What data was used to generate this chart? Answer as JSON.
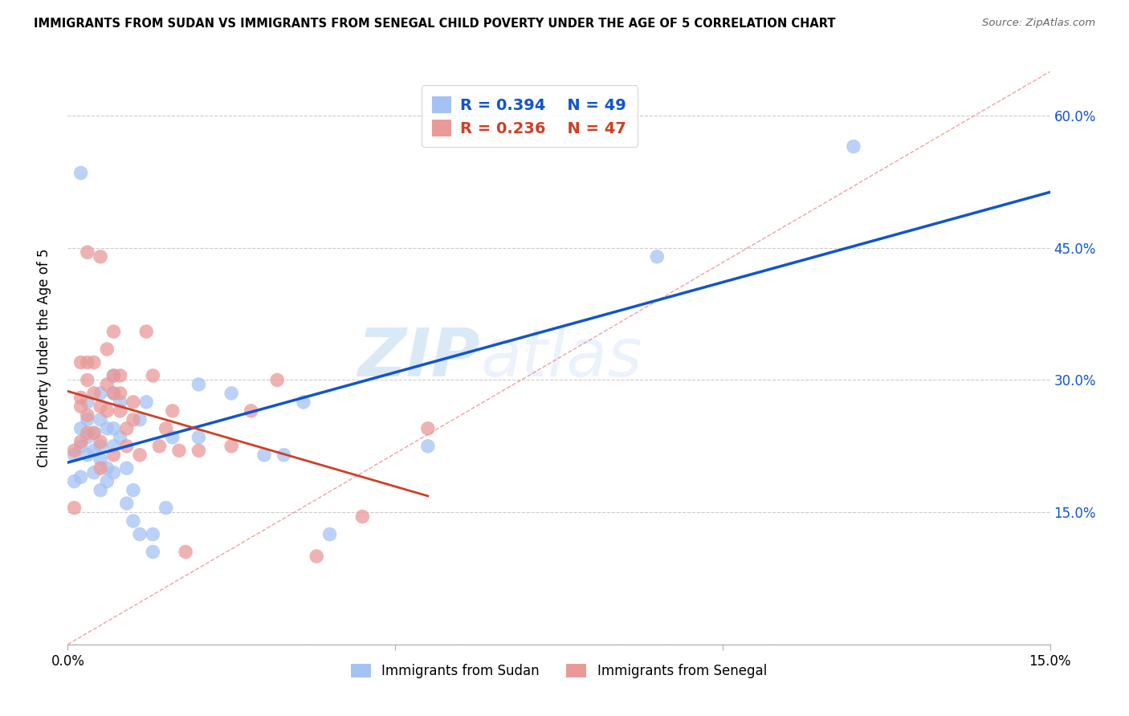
{
  "title": "IMMIGRANTS FROM SUDAN VS IMMIGRANTS FROM SENEGAL CHILD POVERTY UNDER THE AGE OF 5 CORRELATION CHART",
  "source": "Source: ZipAtlas.com",
  "ylabel": "Child Poverty Under the Age of 5",
  "xlim": [
    0,
    0.15
  ],
  "ylim": [
    0,
    0.65
  ],
  "sudan_color": "#a4c2f4",
  "senegal_color": "#ea9999",
  "sudan_line_color": "#1155cc",
  "senegal_line_color": "#cc4125",
  "diagonal_color": "#e06666",
  "watermark_zip": "ZIP",
  "watermark_atlas": "atlas",
  "legend_r_sudan": "R = 0.394",
  "legend_n_sudan": "N = 49",
  "legend_r_senegal": "R = 0.236",
  "legend_n_senegal": "N = 47",
  "sudan_x": [
    0.001,
    0.001,
    0.002,
    0.002,
    0.002,
    0.002,
    0.003,
    0.003,
    0.003,
    0.003,
    0.004,
    0.004,
    0.004,
    0.005,
    0.005,
    0.005,
    0.005,
    0.005,
    0.006,
    0.006,
    0.006,
    0.007,
    0.007,
    0.007,
    0.007,
    0.007,
    0.008,
    0.008,
    0.009,
    0.009,
    0.01,
    0.01,
    0.011,
    0.011,
    0.012,
    0.013,
    0.013,
    0.015,
    0.016,
    0.02,
    0.02,
    0.025,
    0.03,
    0.033,
    0.036,
    0.04,
    0.055,
    0.09,
    0.12
  ],
  "sudan_y": [
    0.215,
    0.185,
    0.245,
    0.225,
    0.19,
    0.535,
    0.215,
    0.235,
    0.255,
    0.275,
    0.22,
    0.24,
    0.195,
    0.21,
    0.285,
    0.225,
    0.255,
    0.175,
    0.245,
    0.2,
    0.185,
    0.285,
    0.305,
    0.225,
    0.245,
    0.195,
    0.275,
    0.235,
    0.2,
    0.16,
    0.175,
    0.14,
    0.255,
    0.125,
    0.275,
    0.125,
    0.105,
    0.155,
    0.235,
    0.295,
    0.235,
    0.285,
    0.215,
    0.215,
    0.275,
    0.125,
    0.225,
    0.44,
    0.565
  ],
  "senegal_x": [
    0.001,
    0.001,
    0.002,
    0.002,
    0.002,
    0.002,
    0.003,
    0.003,
    0.003,
    0.003,
    0.003,
    0.004,
    0.004,
    0.004,
    0.005,
    0.005,
    0.005,
    0.005,
    0.006,
    0.006,
    0.006,
    0.007,
    0.007,
    0.007,
    0.007,
    0.008,
    0.008,
    0.008,
    0.009,
    0.009,
    0.01,
    0.01,
    0.011,
    0.012,
    0.013,
    0.014,
    0.015,
    0.016,
    0.017,
    0.018,
    0.02,
    0.025,
    0.028,
    0.032,
    0.038,
    0.045,
    0.055
  ],
  "senegal_y": [
    0.155,
    0.22,
    0.23,
    0.27,
    0.28,
    0.32,
    0.24,
    0.26,
    0.3,
    0.32,
    0.445,
    0.24,
    0.285,
    0.32,
    0.2,
    0.23,
    0.27,
    0.44,
    0.265,
    0.295,
    0.335,
    0.285,
    0.305,
    0.355,
    0.215,
    0.265,
    0.285,
    0.305,
    0.225,
    0.245,
    0.255,
    0.275,
    0.215,
    0.355,
    0.305,
    0.225,
    0.245,
    0.265,
    0.22,
    0.105,
    0.22,
    0.225,
    0.265,
    0.3,
    0.1,
    0.145,
    0.245
  ]
}
